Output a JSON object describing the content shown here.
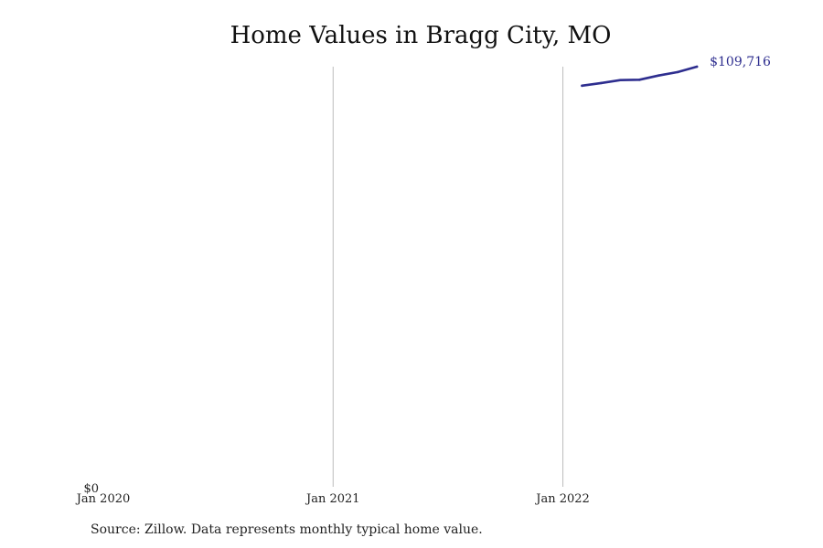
{
  "chart_data": {
    "type": "line",
    "title": "Home Values in Bragg City, MO",
    "xlabel": "",
    "ylabel": "",
    "x_ticks": [
      "Jan 2020",
      "Jan 2021",
      "Jan 2022"
    ],
    "y_ticks": [
      "$0"
    ],
    "x_range": [
      "2020-01",
      "2022-10"
    ],
    "y_range": [
      0,
      109716
    ],
    "grid": "vertical",
    "series": [
      {
        "color": "#2e2e8f",
        "points": [
          {
            "x": "2022-02",
            "y": 104750
          },
          {
            "x": "2022-03",
            "y": 105450
          },
          {
            "x": "2022-04",
            "y": 106200
          },
          {
            "x": "2022-05",
            "y": 106300
          },
          {
            "x": "2022-06",
            "y": 107400
          },
          {
            "x": "2022-07",
            "y": 108300
          },
          {
            "x": "2022-08",
            "y": 109716
          }
        ],
        "end_label": "$109,716"
      }
    ],
    "source_note": "Source: Zillow. Data represents monthly typical home value."
  }
}
